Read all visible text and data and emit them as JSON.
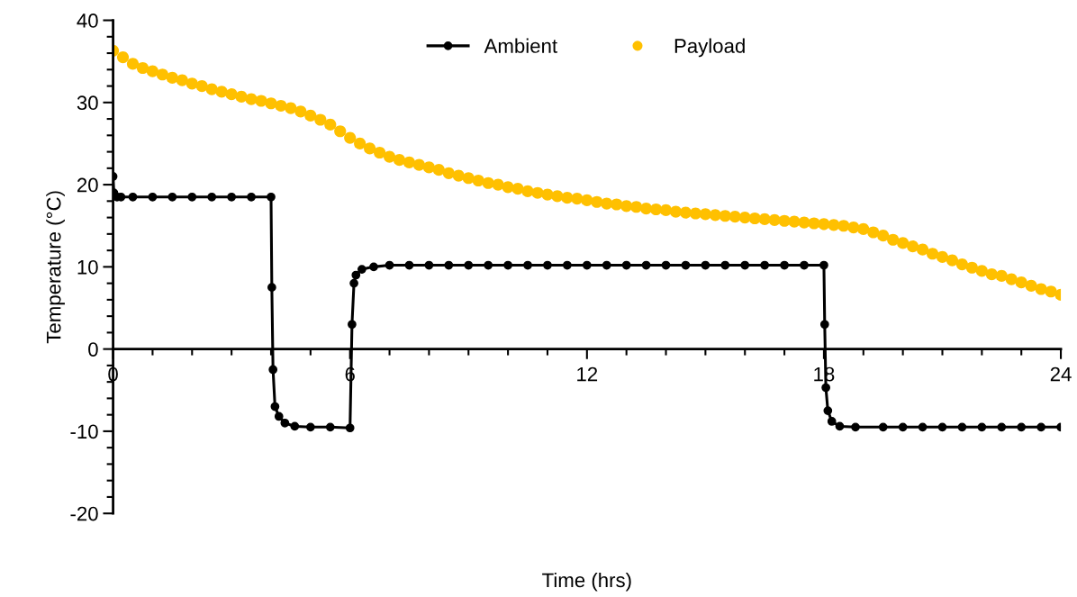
{
  "chart_data": {
    "type": "line",
    "xlabel": "Time (hrs)",
    "ylabel": "Temperature (°C)",
    "xlim": [
      0,
      24
    ],
    "ylim": [
      -20,
      40
    ],
    "xticks": [
      0,
      {
        "value": 1,
        "label": null
      },
      {
        "value": 2,
        "label": null
      },
      {
        "value": 3,
        "label": null
      },
      {
        "value": 4,
        "label": null
      },
      {
        "value": 5,
        "label": null
      },
      6,
      {
        "value": 7,
        "label": null
      },
      {
        "value": 8,
        "label": null
      },
      {
        "value": 9,
        "label": null
      },
      {
        "value": 10,
        "label": null
      },
      {
        "value": 11,
        "label": null
      },
      12,
      {
        "value": 13,
        "label": null
      },
      {
        "value": 14,
        "label": null
      },
      {
        "value": 15,
        "label": null
      },
      {
        "value": 16,
        "label": null
      },
      {
        "value": 17,
        "label": null
      },
      18,
      {
        "value": 19,
        "label": null
      },
      {
        "value": 20,
        "label": null
      },
      {
        "value": 21,
        "label": null
      },
      {
        "value": 22,
        "label": null
      },
      {
        "value": 23,
        "label": null
      },
      24
    ],
    "yticks": [
      -20,
      {
        "value": -18,
        "label": null
      },
      {
        "value": -16,
        "label": null
      },
      {
        "value": -14,
        "label": null
      },
      {
        "value": -12,
        "label": null
      },
      -10,
      {
        "value": -8,
        "label": null
      },
      {
        "value": -6,
        "label": null
      },
      {
        "value": -4,
        "label": null
      },
      {
        "value": -2,
        "label": null
      },
      0,
      {
        "value": 2,
        "label": null
      },
      {
        "value": 4,
        "label": null
      },
      {
        "value": 6,
        "label": null
      },
      {
        "value": 8,
        "label": null
      },
      10,
      {
        "value": 12,
        "label": null
      },
      {
        "value": 14,
        "label": null
      },
      {
        "value": 16,
        "label": null
      },
      {
        "value": 18,
        "label": null
      },
      20,
      {
        "value": 22,
        "label": null
      },
      {
        "value": 24,
        "label": null
      },
      {
        "value": 26,
        "label": null
      },
      {
        "value": 28,
        "label": null
      },
      30,
      {
        "value": 32,
        "label": null
      },
      {
        "value": 34,
        "label": null
      },
      {
        "value": 36,
        "label": null
      },
      {
        "value": 38,
        "label": null
      },
      40
    ],
    "grid": false,
    "legend": "top",
    "marker": "circle",
    "line_style": "solid",
    "series": [
      {
        "name": "Ambient",
        "color": "#000000",
        "x": [
          0,
          0.02,
          0.1,
          0.2,
          0.5,
          1,
          1.5,
          2,
          2.5,
          3,
          3.5,
          4.0,
          4.02,
          4.05,
          4.1,
          4.2,
          4.35,
          4.6,
          5,
          5.5,
          6.0,
          6.05,
          6.1,
          6.15,
          6.3,
          6.6,
          7,
          7.5,
          8,
          8.5,
          9,
          9.5,
          10,
          10.5,
          11,
          11.5,
          12,
          12.5,
          13,
          13.5,
          14,
          14.5,
          15,
          15.5,
          16,
          16.5,
          17,
          17.5,
          18.0,
          18.02,
          18.05,
          18.1,
          18.2,
          18.4,
          18.8,
          19.5,
          20,
          20.5,
          21,
          21.5,
          22,
          22.5,
          23,
          23.5,
          24
        ],
        "values": [
          21.0,
          19.0,
          18.5,
          18.5,
          18.5,
          18.5,
          18.5,
          18.5,
          18.5,
          18.5,
          18.5,
          18.5,
          7.5,
          -2.5,
          -7.0,
          -8.2,
          -9.0,
          -9.4,
          -9.5,
          -9.5,
          -9.6,
          3.0,
          8.0,
          9.0,
          9.7,
          10.0,
          10.2,
          10.2,
          10.2,
          10.2,
          10.2,
          10.2,
          10.2,
          10.2,
          10.2,
          10.2,
          10.2,
          10.2,
          10.2,
          10.2,
          10.2,
          10.2,
          10.2,
          10.2,
          10.2,
          10.2,
          10.2,
          10.2,
          10.2,
          3.0,
          -4.7,
          -7.5,
          -8.8,
          -9.4,
          -9.5,
          -9.5,
          -9.5,
          -9.5,
          -9.5,
          -9.5,
          -9.5,
          -9.5,
          -9.5,
          -9.5,
          -9.5
        ]
      },
      {
        "name": "Payload",
        "type": "scatter",
        "color": "#ffc000",
        "x": [
          0,
          0.25,
          0.5,
          0.75,
          1,
          1.25,
          1.5,
          1.75,
          2,
          2.25,
          2.5,
          2.75,
          3,
          3.25,
          3.5,
          3.75,
          4,
          4.25,
          4.5,
          4.75,
          5,
          5.25,
          5.5,
          5.75,
          6,
          6.25,
          6.5,
          6.75,
          7,
          7.25,
          7.5,
          7.75,
          8,
          8.25,
          8.5,
          8.75,
          9,
          9.25,
          9.5,
          9.75,
          10,
          10.25,
          10.5,
          10.75,
          11,
          11.25,
          11.5,
          11.75,
          12,
          12.25,
          12.5,
          12.75,
          13,
          13.25,
          13.5,
          13.75,
          14,
          14.25,
          14.5,
          14.75,
          15,
          15.25,
          15.5,
          15.75,
          16,
          16.25,
          16.5,
          16.75,
          17,
          17.25,
          17.5,
          17.75,
          18,
          18.25,
          18.5,
          18.75,
          19,
          19.25,
          19.5,
          19.75,
          20,
          20.25,
          20.5,
          20.75,
          21,
          21.25,
          21.5,
          21.75,
          22,
          22.25,
          22.5,
          22.75,
          23,
          23.25,
          23.5,
          23.75,
          24
        ],
        "values": [
          36.3,
          35.5,
          34.7,
          34.2,
          33.8,
          33.4,
          33.0,
          32.7,
          32.3,
          32.0,
          31.6,
          31.3,
          31.0,
          30.7,
          30.4,
          30.2,
          29.9,
          29.6,
          29.3,
          28.9,
          28.4,
          27.9,
          27.3,
          26.5,
          25.7,
          25.0,
          24.4,
          23.9,
          23.4,
          23.0,
          22.7,
          22.4,
          22.1,
          21.8,
          21.4,
          21.1,
          20.8,
          20.5,
          20.2,
          20.0,
          19.7,
          19.5,
          19.2,
          19.0,
          18.8,
          18.6,
          18.4,
          18.3,
          18.1,
          17.9,
          17.7,
          17.6,
          17.4,
          17.3,
          17.1,
          17.0,
          16.9,
          16.7,
          16.6,
          16.5,
          16.4,
          16.3,
          16.2,
          16.1,
          16.0,
          15.9,
          15.8,
          15.7,
          15.6,
          15.5,
          15.4,
          15.3,
          15.2,
          15.1,
          15.0,
          14.8,
          14.6,
          14.2,
          13.8,
          13.3,
          12.9,
          12.5,
          12.1,
          11.6,
          11.2,
          10.8,
          10.3,
          9.9,
          9.5,
          9.1,
          8.9,
          8.5,
          8.1,
          7.7,
          7.3,
          7.0,
          6.6
        ]
      }
    ]
  }
}
